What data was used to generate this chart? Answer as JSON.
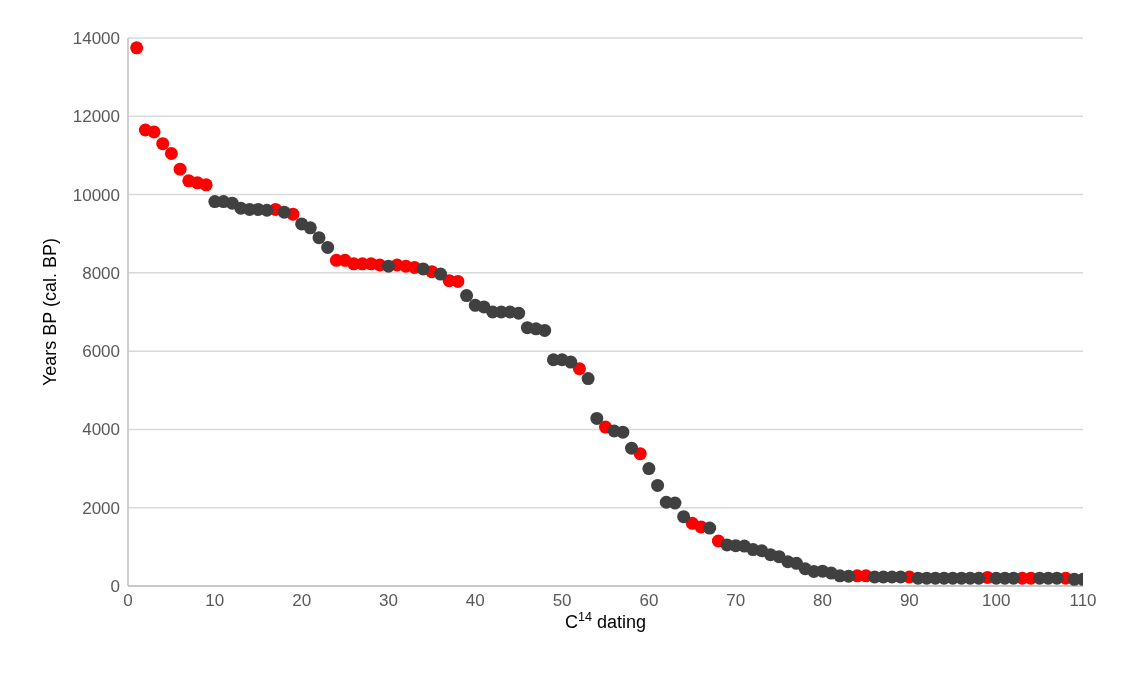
{
  "chart_data": {
    "type": "scatter",
    "xlabel": "C$^{14}$ dating",
    "ylabel": "Years BP (cal. BP)",
    "xlim": [
      0,
      110
    ],
    "xticks": [
      0,
      10,
      20,
      30,
      40,
      50,
      60,
      70,
      80,
      90,
      100,
      110
    ],
    "ylim": [
      0,
      14000
    ],
    "yticks": [
      0,
      2000,
      4000,
      6000,
      8000,
      10000,
      12000,
      14000
    ],
    "grid": "y",
    "marker": "circle",
    "series": [
      {
        "color": "#ff0000",
        "x": [
          1,
          2,
          3,
          4,
          5,
          6,
          7,
          8,
          9,
          17,
          19,
          24,
          25,
          26,
          27,
          28,
          29,
          31,
          32,
          33,
          35,
          37,
          38,
          52,
          55,
          59,
          65,
          66,
          68,
          84,
          85,
          90,
          99,
          103,
          104,
          108
        ],
        "values": [
          13750,
          11650,
          11600,
          11300,
          11050,
          10650,
          10350,
          10300,
          10250,
          9620,
          9500,
          8320,
          8320,
          8230,
          8230,
          8230,
          8200,
          8200,
          8170,
          8140,
          8030,
          7800,
          7780,
          5550,
          4060,
          3380,
          1600,
          1510,
          1150,
          260,
          260,
          230,
          220,
          200,
          200,
          200
        ]
      },
      {
        "color": "#404040",
        "x": [
          10,
          11,
          12,
          13,
          14,
          15,
          16,
          18,
          20,
          21,
          22,
          23,
          30,
          34,
          36,
          39,
          40,
          41,
          42,
          43,
          44,
          45,
          46,
          47,
          48,
          49,
          50,
          51,
          53,
          54,
          56,
          57,
          58,
          60,
          61,
          62,
          63,
          64,
          67,
          69,
          70,
          71,
          72,
          73,
          74,
          75,
          76,
          77,
          78,
          79,
          80,
          81,
          82,
          83,
          86,
          87,
          88,
          89,
          91,
          92,
          93,
          94,
          95,
          96,
          97,
          98,
          100,
          101,
          102,
          105,
          106,
          107,
          109,
          110
        ],
        "values": [
          9820,
          9820,
          9780,
          9650,
          9620,
          9620,
          9600,
          9550,
          9250,
          9150,
          8900,
          8650,
          8170,
          8100,
          7970,
          7420,
          7170,
          7130,
          7000,
          7000,
          7000,
          6970,
          6600,
          6570,
          6530,
          5780,
          5780,
          5720,
          5300,
          4280,
          3960,
          3930,
          3520,
          3000,
          2570,
          2140,
          2120,
          1770,
          1480,
          1050,
          1030,
          1020,
          930,
          900,
          800,
          750,
          620,
          580,
          440,
          370,
          380,
          330,
          260,
          250,
          230,
          230,
          230,
          230,
          200,
          200,
          200,
          200,
          200,
          200,
          200,
          200,
          200,
          200,
          200,
          200,
          200,
          200,
          170,
          170
        ]
      }
    ]
  }
}
